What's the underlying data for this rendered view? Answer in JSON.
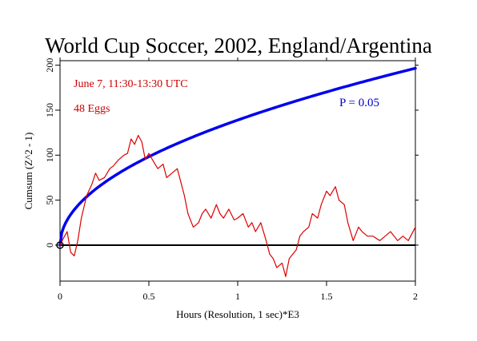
{
  "chart_data": {
    "type": "line",
    "title": "World Cup Soccer, 2002, England/Argentina",
    "xlabel": "Hours (Resolution, 1 sec)*E3",
    "ylabel": "Cumsum (Z^2 - 1)",
    "xlim": [
      0,
      2
    ],
    "ylim": [
      -40,
      205
    ],
    "x_ticks": [
      0,
      0.5,
      1,
      1.5,
      2
    ],
    "x_tick_labels": [
      "0",
      "0.5",
      "1",
      "1.5",
      "2"
    ],
    "y_ticks": [
      0,
      50,
      100,
      150,
      200
    ],
    "y_tick_labels": [
      "0",
      "50",
      "100",
      "150",
      "200"
    ],
    "grid": false,
    "annotations": [
      {
        "text": "June 7, 11:30-13:30 UTC",
        "color": "#cc0000"
      },
      {
        "text": "48 Eggs",
        "color": "#cc0000"
      },
      {
        "text": "P = 0.05",
        "color": "#0000cc"
      }
    ],
    "series": [
      {
        "role": "cumulative-deviation",
        "color": "#dd0000",
        "x": [
          0,
          0.02,
          0.04,
          0.06,
          0.08,
          0.1,
          0.12,
          0.15,
          0.18,
          0.2,
          0.22,
          0.25,
          0.28,
          0.3,
          0.33,
          0.36,
          0.38,
          0.4,
          0.42,
          0.44,
          0.46,
          0.48,
          0.5,
          0.52,
          0.55,
          0.58,
          0.6,
          0.63,
          0.66,
          0.68,
          0.7,
          0.72,
          0.75,
          0.78,
          0.8,
          0.82,
          0.85,
          0.88,
          0.9,
          0.92,
          0.95,
          0.98,
          1.0,
          1.03,
          1.06,
          1.08,
          1.1,
          1.13,
          1.16,
          1.18,
          1.2,
          1.22,
          1.25,
          1.27,
          1.29,
          1.31,
          1.33,
          1.35,
          1.37,
          1.4,
          1.42,
          1.45,
          1.47,
          1.5,
          1.52,
          1.55,
          1.57,
          1.6,
          1.62,
          1.65,
          1.68,
          1.7,
          1.73,
          1.76,
          1.8,
          1.83,
          1.86,
          1.9,
          1.93,
          1.96,
          2.0
        ],
        "y": [
          0,
          8,
          15,
          -8,
          -12,
          5,
          30,
          55,
          68,
          80,
          72,
          75,
          85,
          88,
          95,
          100,
          102,
          118,
          112,
          122,
          115,
          95,
          102,
          95,
          85,
          90,
          75,
          80,
          85,
          70,
          55,
          35,
          20,
          25,
          35,
          40,
          30,
          45,
          35,
          30,
          40,
          28,
          30,
          35,
          20,
          25,
          15,
          25,
          5,
          -10,
          -15,
          -25,
          -20,
          -35,
          -15,
          -10,
          -5,
          10,
          15,
          20,
          35,
          30,
          45,
          60,
          55,
          65,
          50,
          45,
          25,
          5,
          20,
          15,
          10,
          10,
          5,
          10,
          15,
          5,
          10,
          5,
          20
        ]
      },
      {
        "role": "p-0.05-envelope",
        "color": "#0000ee",
        "equation": "y = 139.0 * sqrt(x)"
      },
      {
        "role": "baseline",
        "color": "#000000",
        "y_constant": 0
      }
    ]
  }
}
